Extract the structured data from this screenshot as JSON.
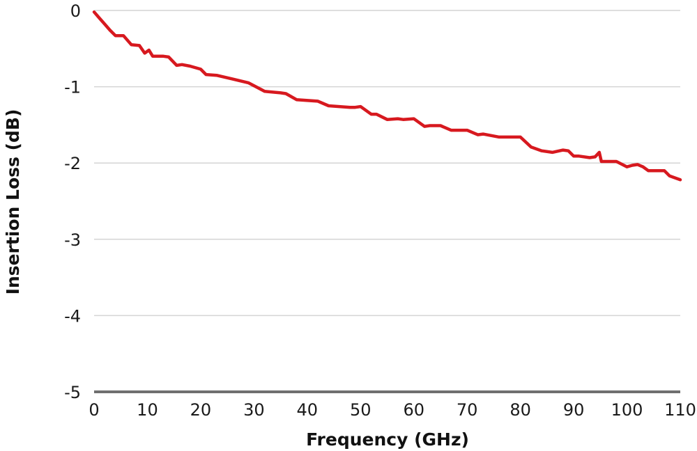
{
  "chart_data": {
    "type": "line",
    "title": "",
    "xlabel": "Frequency (GHz)",
    "ylabel": "Insertion Loss (dB)",
    "xlim": [
      0,
      110
    ],
    "ylim": [
      -5,
      0
    ],
    "x_ticks": [
      "0",
      "10",
      "20",
      "30",
      "40",
      "50",
      "60",
      "70",
      "80",
      "90",
      "100",
      "110"
    ],
    "y_ticks": [
      "0",
      "-1",
      "-2",
      "-3",
      "-4",
      "-5"
    ],
    "grid": true,
    "series": [
      {
        "color": "#d7191f",
        "x": [
          0,
          1,
          2,
          3,
          4,
          5.5,
          7,
          8.5,
          9.5,
          10.3,
          11,
          13,
          14,
          15.5,
          16.5,
          18,
          20,
          21,
          23,
          26,
          29,
          32,
          35,
          36,
          38,
          42,
          44,
          46,
          48,
          49,
          50,
          52,
          53,
          55,
          57,
          58,
          60,
          62,
          63,
          65,
          67,
          68,
          70,
          72,
          73,
          76,
          79,
          80,
          82,
          84,
          86,
          88,
          89,
          90,
          91,
          93,
          94,
          94.8,
          95.2,
          98,
          100,
          101,
          102,
          103,
          104,
          106,
          107,
          108,
          110
        ],
        "values": [
          -0.02,
          -0.1,
          -0.18,
          -0.26,
          -0.33,
          -0.33,
          -0.45,
          -0.46,
          -0.56,
          -0.52,
          -0.6,
          -0.6,
          -0.61,
          -0.72,
          -0.71,
          -0.73,
          -0.77,
          -0.84,
          -0.85,
          -0.9,
          -0.95,
          -1.06,
          -1.08,
          -1.09,
          -1.17,
          -1.19,
          -1.25,
          -1.26,
          -1.27,
          -1.27,
          -1.26,
          -1.36,
          -1.36,
          -1.43,
          -1.42,
          -1.43,
          -1.42,
          -1.52,
          -1.51,
          -1.51,
          -1.57,
          -1.57,
          -1.57,
          -1.63,
          -1.62,
          -1.66,
          -1.66,
          -1.66,
          -1.79,
          -1.84,
          -1.86,
          -1.83,
          -1.84,
          -1.91,
          -1.91,
          -1.93,
          -1.92,
          -1.86,
          -1.98,
          -1.98,
          -2.05,
          -2.03,
          -2.02,
          -2.05,
          -2.1,
          -2.1,
          -2.1,
          -2.17,
          -2.22
        ]
      }
    ]
  }
}
